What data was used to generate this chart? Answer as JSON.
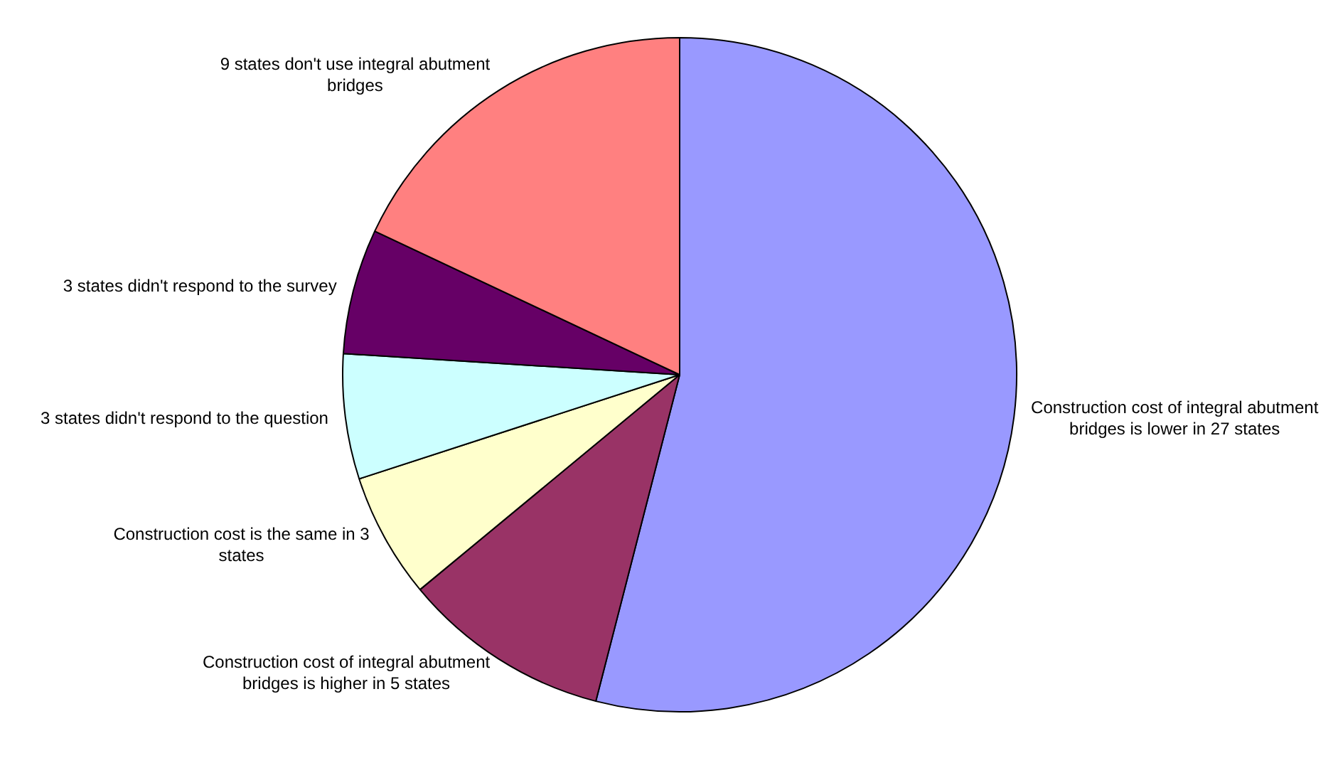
{
  "chart_data": {
    "type": "pie",
    "categories": [
      "Construction cost of integral abutment bridges is lower in 27 states",
      "Construction cost of integral abutment bridges is higher in 5 states",
      "Construction cost is the same in 3 states",
      "3 states didn't respond to the question",
      "3 states didn't respond to the survey",
      "9 states don't use integral abutment bridges"
    ],
    "values": [
      27,
      5,
      3,
      3,
      3,
      9
    ],
    "colors": [
      "#9999ff",
      "#993366",
      "#ffffcc",
      "#ccffff",
      "#660066",
      "#ff8080"
    ],
    "legend": false
  }
}
